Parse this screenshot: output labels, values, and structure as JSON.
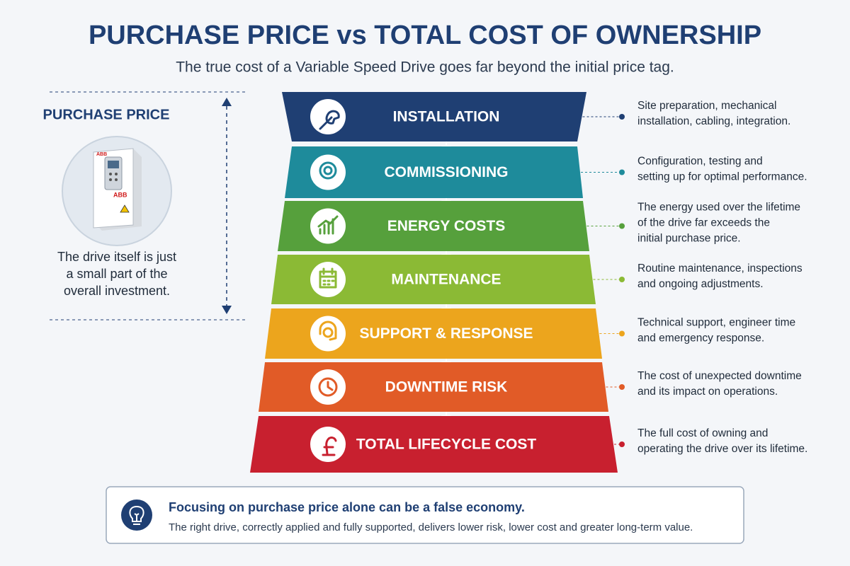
{
  "header": {
    "title": "PURCHASE PRICE vs TOTAL COST OF OWNERSHIP",
    "subtitle": "The true cost of a Variable Speed Drive goes far beyond the initial price tag."
  },
  "left_panel": {
    "title": "PURCHASE PRICE",
    "device_brand": "ABB",
    "description_lines": [
      "The drive itself is just",
      "a small part of the",
      "overall investment."
    ]
  },
  "stages": [
    {
      "label": "INSTALLATION",
      "color": "#1f3f73",
      "description_lines": [
        "Site preparation, mechanical",
        "installation, cabling, integration."
      ]
    },
    {
      "label": "COMMISSIONING",
      "color": "#1e8b9b",
      "description_lines": [
        "Configuration, testing and",
        "setting up for optimal performance."
      ]
    },
    {
      "label": "ENERGY COSTS",
      "color": "#56a03c",
      "description_lines": [
        "The energy used over the lifetime",
        "of the drive far exceeds the",
        "initial purchase price."
      ]
    },
    {
      "label": "MAINTENANCE",
      "color": "#8bba35",
      "description_lines": [
        "Routine maintenance, inspections",
        "and ongoing adjustments."
      ]
    },
    {
      "label": "SUPPORT & RESPONSE",
      "color": "#eca51d",
      "description_lines": [
        "Technical support, engineer time",
        "and emergency response."
      ]
    },
    {
      "label": "DOWNTIME RISK",
      "color": "#e15b27",
      "description_lines": [
        "The cost of unexpected downtime",
        "and its impact on operations."
      ]
    },
    {
      "label": "TOTAL LIFECYCLE COST",
      "color": "#c8202f",
      "description_lines": [
        "The full cost of owning and",
        "operating the drive over its lifetime."
      ]
    }
  ],
  "footer": {
    "title": "Focusing on purchase price alone can be a false economy.",
    "body": "The right drive, correctly applied and fully supported, delivers lower risk, lower cost and greater long-term value."
  }
}
